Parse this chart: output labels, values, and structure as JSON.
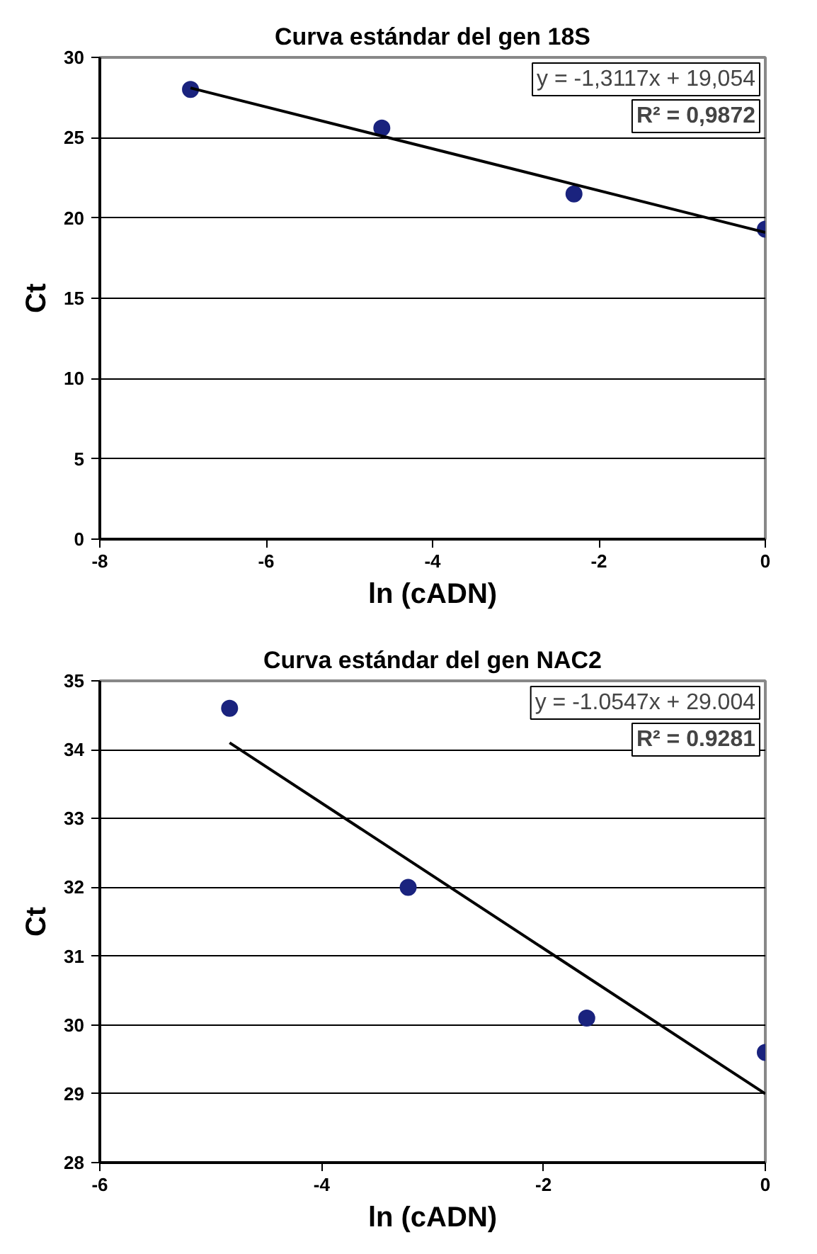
{
  "chart_data": [
    {
      "type": "scatter",
      "title": "Curva estándar del gen 18S",
      "xlabel": "ln (cADN)",
      "ylabel": "Ct",
      "xlim": [
        -8,
        0
      ],
      "xticks": [
        -8,
        -6,
        -4,
        -2,
        0
      ],
      "ylim": [
        0,
        30
      ],
      "yticks": [
        0,
        5,
        10,
        15,
        20,
        25,
        30
      ],
      "grid": "y",
      "marker": "circle",
      "annotations": [
        "y = -1,3117x + 19,054",
        "R² = 0,9872"
      ],
      "series": [
        {
          "color": "#1a237e",
          "x": [
            -6.91,
            -4.61,
            -2.3,
            0
          ],
          "values": [
            28.0,
            25.6,
            21.5,
            19.3
          ]
        },
        {
          "type": "line",
          "marker": "none",
          "color": "#000000",
          "x": [
            -6.91,
            0
          ],
          "values": [
            28.1,
            19.1
          ]
        }
      ]
    },
    {
      "type": "scatter",
      "title": "Curva estándar del gen NAC2",
      "xlabel": "ln (cADN)",
      "ylabel": "Ct",
      "xlim": [
        -6,
        0
      ],
      "xticks": [
        -6,
        -4,
        -2,
        0
      ],
      "ylim": [
        28,
        35
      ],
      "yticks": [
        28,
        29,
        30,
        31,
        32,
        33,
        34,
        35
      ],
      "grid": "y",
      "marker": "circle",
      "annotations": [
        "y = -1.0547x + 29.004",
        "R² = 0.9281"
      ],
      "series": [
        {
          "color": "#1a237e",
          "x": [
            -4.83,
            -3.22,
            -1.61,
            0
          ],
          "values": [
            34.6,
            32.0,
            30.1,
            29.6
          ]
        },
        {
          "type": "line",
          "marker": "none",
          "color": "#000000",
          "x": [
            -4.83,
            0
          ],
          "values": [
            34.1,
            29.0
          ]
        }
      ]
    }
  ]
}
